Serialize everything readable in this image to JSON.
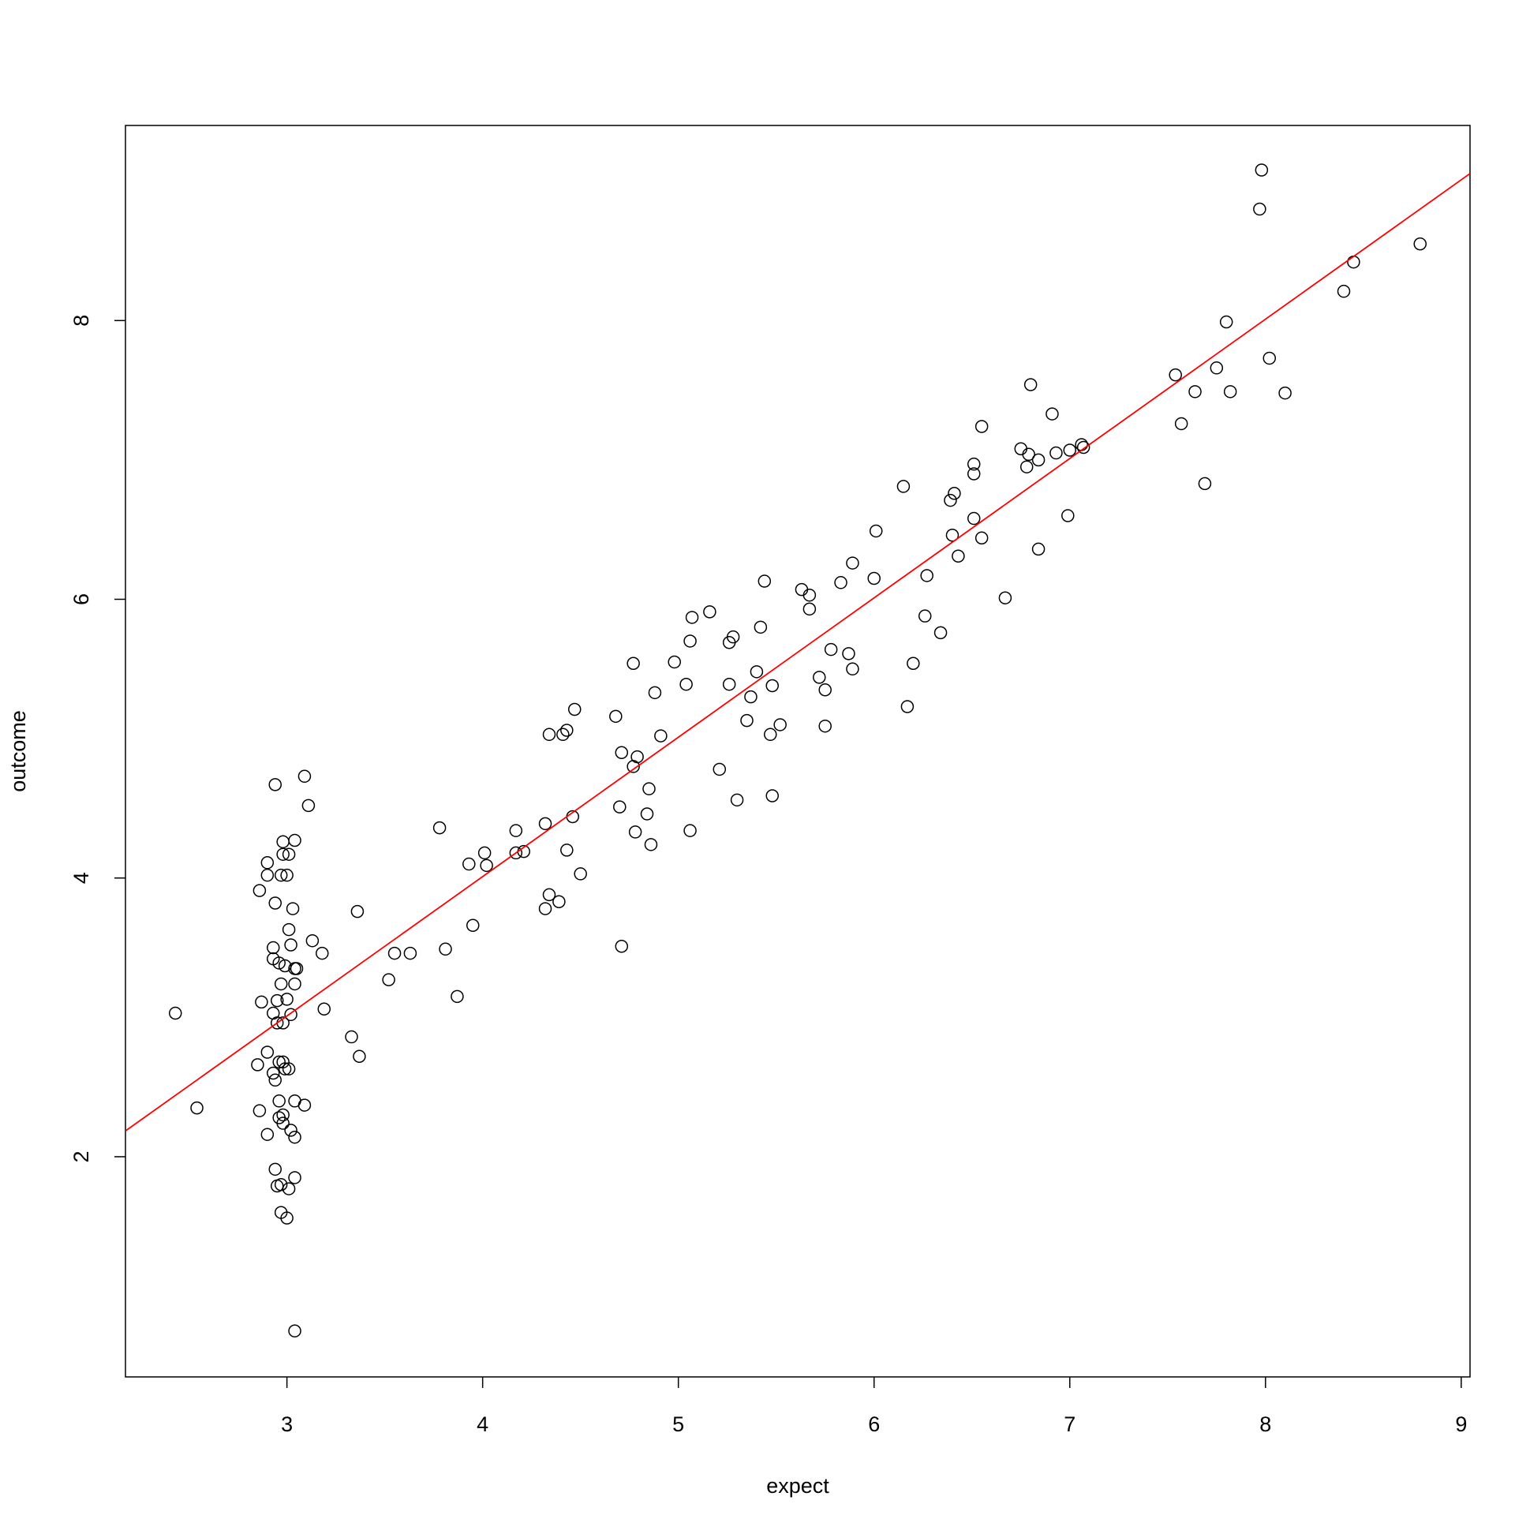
{
  "chart_data": {
    "type": "scatter",
    "x_label": "expect",
    "y_label": "outcome",
    "xlim": [
      2.175,
      9.045
    ],
    "ylim": [
      0.42,
      9.4
    ],
    "xticks": [
      3,
      4,
      5,
      6,
      7,
      8,
      9
    ],
    "yticks": [
      2,
      4,
      6,
      8
    ],
    "color": "#000000",
    "fit": {
      "intercept": 0.01,
      "slope": 1.0,
      "color": "#ff0000"
    },
    "x": [
      2.43,
      2.54,
      2.85,
      2.86,
      2.86,
      2.87,
      2.9,
      2.9,
      2.9,
      2.9,
      2.93,
      2.93,
      2.93,
      2.93,
      2.94,
      2.94,
      2.94,
      2.94,
      2.95,
      2.95,
      2.95,
      2.96,
      2.96,
      2.96,
      2.96,
      2.97,
      2.97,
      2.97,
      2.97,
      2.98,
      2.98,
      2.98,
      2.98,
      2.98,
      2.98,
      2.99,
      2.99,
      3.0,
      3.0,
      3.0,
      3.01,
      3.01,
      3.01,
      3.01,
      3.02,
      3.02,
      3.02,
      3.03,
      3.04,
      3.04,
      3.04,
      3.04,
      3.04,
      3.04,
      3.04,
      3.05,
      3.09,
      3.09,
      3.11,
      3.13,
      3.18,
      3.19,
      3.33,
      3.36,
      3.37,
      3.52,
      3.55,
      3.63,
      3.78,
      3.81,
      3.87,
      3.93,
      3.95,
      4.01,
      4.02,
      4.17,
      4.17,
      4.21,
      4.32,
      4.32,
      4.34,
      4.34,
      4.39,
      4.41,
      4.43,
      4.43,
      4.46,
      4.47,
      4.5,
      4.68,
      4.7,
      4.71,
      4.71,
      4.77,
      4.77,
      4.78,
      4.79,
      4.84,
      4.85,
      4.86,
      4.88,
      4.91,
      4.98,
      5.04,
      5.06,
      5.06,
      5.07,
      5.16,
      5.21,
      5.26,
      5.26,
      5.28,
      5.3,
      5.35,
      5.37,
      5.4,
      5.42,
      5.44,
      5.47,
      5.48,
      5.48,
      5.52,
      5.63,
      5.67,
      5.67,
      5.72,
      5.75,
      5.75,
      5.78,
      5.83,
      5.87,
      5.89,
      5.89,
      6.0,
      6.01,
      6.15,
      6.17,
      6.2,
      6.26,
      6.27,
      6.34,
      6.39,
      6.4,
      6.41,
      6.43,
      6.51,
      6.51,
      6.51,
      6.55,
      6.55,
      6.67,
      6.75,
      6.78,
      6.79,
      6.8,
      6.84,
      6.84,
      6.91,
      6.93,
      6.99,
      7.0,
      7.06,
      7.07,
      7.54,
      7.57,
      7.64,
      7.69,
      7.75,
      7.8,
      7.82,
      7.97,
      7.98,
      8.02,
      8.1,
      8.4,
      8.45,
      8.79
    ],
    "values": [
      3.03,
      2.35,
      2.66,
      2.33,
      3.91,
      3.11,
      4.11,
      4.02,
      2.75,
      2.16,
      3.5,
      3.42,
      3.03,
      2.6,
      4.67,
      3.82,
      2.55,
      1.91,
      1.79,
      2.96,
      3.12,
      3.39,
      2.68,
      2.4,
      2.28,
      3.24,
      4.02,
      1.8,
      1.6,
      4.26,
      4.17,
      2.96,
      2.68,
      2.3,
      2.24,
      3.37,
      2.63,
      4.02,
      3.13,
      1.56,
      4.17,
      3.63,
      2.63,
      1.77,
      3.52,
      3.02,
      2.19,
      3.78,
      4.27,
      3.35,
      3.24,
      2.4,
      2.14,
      1.85,
      0.75,
      3.35,
      4.73,
      2.37,
      4.52,
      3.55,
      3.46,
      3.06,
      2.86,
      3.76,
      2.72,
      3.27,
      3.46,
      3.46,
      4.36,
      3.49,
      3.15,
      4.1,
      3.66,
      4.18,
      4.09,
      4.34,
      4.18,
      4.19,
      4.39,
      3.78,
      5.03,
      3.88,
      3.83,
      5.03,
      5.06,
      4.2,
      4.44,
      5.21,
      4.03,
      5.16,
      4.51,
      4.9,
      3.51,
      5.54,
      4.8,
      4.33,
      4.87,
      4.46,
      4.64,
      4.24,
      5.33,
      5.02,
      5.55,
      5.39,
      4.34,
      5.7,
      5.87,
      5.91,
      4.78,
      5.39,
      5.69,
      5.73,
      4.56,
      5.13,
      5.3,
      5.48,
      5.8,
      6.13,
      5.03,
      5.38,
      4.59,
      5.1,
      6.07,
      6.03,
      5.93,
      5.44,
      5.35,
      5.09,
      5.64,
      6.12,
      5.61,
      6.26,
      5.5,
      6.15,
      6.49,
      6.81,
      5.23,
      5.54,
      5.88,
      6.17,
      5.76,
      6.71,
      6.46,
      6.76,
      6.31,
      6.97,
      6.9,
      6.58,
      7.24,
      6.44,
      6.01,
      7.08,
      6.95,
      7.04,
      7.54,
      7.0,
      6.36,
      7.33,
      7.05,
      6.6,
      7.07,
      7.11,
      7.09,
      7.61,
      7.26,
      7.49,
      6.83,
      7.66,
      7.99,
      7.49,
      8.8,
      9.08,
      7.73,
      7.48,
      8.21,
      8.42,
      8.55
    ]
  }
}
